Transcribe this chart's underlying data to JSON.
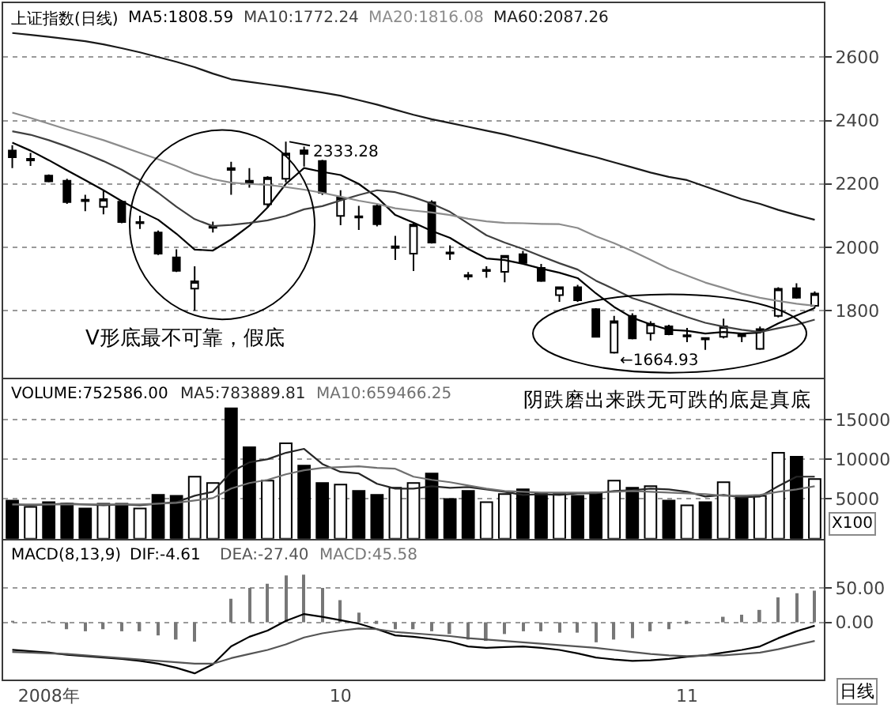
{
  "chart_data": [
    {
      "type": "candlestick",
      "title": "上证指数(日线)",
      "color": "#000000",
      "categories": [
        null,
        null,
        null,
        null,
        null,
        null,
        null,
        null,
        null,
        null,
        null,
        null,
        null,
        null,
        null,
        null,
        null,
        null,
        null,
        null,
        null,
        null,
        null,
        null,
        null,
        null,
        null,
        null,
        null,
        null,
        null,
        null,
        null,
        null,
        null,
        null,
        null,
        null,
        null,
        null,
        null,
        null,
        null,
        null,
        null
      ],
      "ohlc": [
        [
          2305,
          2322,
          2250,
          2284
        ],
        [
          2274,
          2298,
          2257,
          2279
        ],
        [
          2226,
          2230,
          2205,
          2208
        ],
        [
          2210,
          2216,
          2137,
          2143
        ],
        [
          2150,
          2166,
          2114,
          2146
        ],
        [
          2128,
          2181,
          2104,
          2152
        ],
        [
          2144,
          2148,
          2076,
          2080
        ],
        [
          2076,
          2100,
          2058,
          2080
        ],
        [
          2047,
          2053,
          1976,
          1980
        ],
        [
          1968,
          1994,
          1922,
          1926
        ],
        [
          1870,
          1940,
          1800,
          1893
        ],
        [
          2062,
          2081,
          2047,
          2066
        ],
        [
          2250,
          2270,
          2166,
          2244
        ],
        [
          2210,
          2250,
          2188,
          2204
        ],
        [
          2136,
          2224,
          2125,
          2220
        ],
        [
          2216,
          2333.28,
          2205,
          2296
        ],
        [
          2306,
          2318,
          2255,
          2295
        ],
        [
          2272,
          2276,
          2165,
          2172
        ],
        [
          2099,
          2180,
          2070,
          2157
        ],
        [
          2098,
          2131,
          2055,
          2094
        ],
        [
          2130,
          2135,
          2066,
          2073
        ],
        [
          1998,
          2036,
          1960,
          2003
        ],
        [
          1980,
          2080,
          1925,
          2072
        ],
        [
          2142,
          2148,
          2012,
          2015
        ],
        [
          1984,
          2006,
          1960,
          1980
        ],
        [
          1912,
          1922,
          1897,
          1908
        ],
        [
          1925,
          1940,
          1904,
          1929
        ],
        [
          1923,
          1976,
          1890,
          1973
        ],
        [
          1978,
          1989,
          1948,
          1951
        ],
        [
          1935,
          1948,
          1891,
          1894
        ],
        [
          1849,
          1876,
          1828,
          1874
        ],
        [
          1874,
          1882,
          1828,
          1833
        ],
        [
          1805,
          1808,
          1716,
          1718
        ],
        [
          1668,
          1784,
          1664.93,
          1767
        ],
        [
          1784,
          1792,
          1710,
          1713
        ],
        [
          1729,
          1767,
          1706,
          1759
        ],
        [
          1751,
          1756,
          1723,
          1726
        ],
        [
          1719,
          1746,
          1701,
          1723
        ],
        [
          1714,
          1716,
          1677,
          1710
        ],
        [
          1718,
          1775,
          1713,
          1751
        ],
        [
          1724,
          1729,
          1701,
          1720
        ],
        [
          1680,
          1750,
          1677,
          1742
        ],
        [
          1784,
          1874,
          1779,
          1869
        ],
        [
          1871,
          1887,
          1838,
          1841
        ],
        [
          1816,
          1861,
          1808,
          1854
        ]
      ],
      "colors": [
        "#000000",
        "#000000",
        "#000000",
        "#000000",
        "#000000",
        "#ffffff",
        "#000000",
        "#000000",
        "#000000",
        "#000000",
        "#ffffff",
        "#000000",
        "#000000",
        "#000000",
        "#ffffff",
        "#ffffff",
        "#000000",
        "#000000",
        "#ffffff",
        "#000000",
        "#000000",
        "#000000",
        "#ffffff",
        "#000000",
        "#000000",
        "#000000",
        "#000000",
        "#ffffff",
        "#000000",
        "#000000",
        "#ffffff",
        "#000000",
        "#000000",
        "#ffffff",
        "#000000",
        "#ffffff",
        "#000000",
        "#000000",
        "#000000",
        "#ffffff",
        "#000000",
        "#ffffff",
        "#ffffff",
        "#000000",
        "#ffffff"
      ],
      "series": [
        {
          "name": "MA5:1808.59",
          "type": "line",
          "color": "#000000",
          "values": [
            2330,
            2305,
            2275,
            2243,
            2212,
            2180,
            2146,
            2115,
            2087,
            2043,
            1993,
            1990,
            2025,
            2068,
            2126,
            2200,
            2250,
            2238,
            2228,
            2200,
            2158,
            2102,
            2078,
            2052,
            2030,
            1995,
            1965,
            1960,
            1948,
            1933,
            1920,
            1903,
            1855,
            1812,
            1778,
            1757,
            1740,
            1737,
            1728,
            1733,
            1728,
            1731,
            1760,
            1785,
            1809
          ]
        },
        {
          "name": "MA10:1772.24",
          "type": "line",
          "color": "#404040",
          "values": [
            2366,
            2355,
            2338,
            2318,
            2296,
            2272,
            2245,
            2212,
            2172,
            2128,
            2089,
            2067,
            2071,
            2077,
            2085,
            2099,
            2120,
            2130,
            2148,
            2165,
            2180,
            2174,
            2158,
            2138,
            2112,
            2075,
            2038,
            2015,
            1995,
            1972,
            1950,
            1930,
            1895,
            1868,
            1840,
            1822,
            1800,
            1780,
            1762,
            1750,
            1740,
            1733,
            1745,
            1756,
            1772
          ]
        },
        {
          "name": "MA20:1816.08",
          "type": "line",
          "color": "#8c8c8c",
          "values": [
            2425,
            2408,
            2390,
            2372,
            2355,
            2338,
            2318,
            2298,
            2278,
            2256,
            2232,
            2215,
            2204,
            2200,
            2197,
            2190,
            2182,
            2172,
            2160,
            2147,
            2137,
            2123,
            2116,
            2110,
            2102,
            2090,
            2082,
            2077,
            2076,
            2074,
            2073,
            2061,
            2035,
            2013,
            1988,
            1961,
            1933,
            1911,
            1889,
            1872,
            1854,
            1841,
            1831,
            1822,
            1816
          ]
        },
        {
          "name": "MA60:2087.26",
          "type": "line",
          "color": "#1a1a1a",
          "values": [
            2676,
            2670,
            2664,
            2657,
            2650,
            2640,
            2628,
            2615,
            2600,
            2585,
            2568,
            2548,
            2530,
            2522,
            2514,
            2506,
            2497,
            2488,
            2478,
            2464,
            2450,
            2434,
            2418,
            2404,
            2392,
            2380,
            2368,
            2356,
            2342,
            2328,
            2313,
            2298,
            2284,
            2268,
            2252,
            2236,
            2222,
            2212,
            2192,
            2172,
            2152,
            2137,
            2118,
            2102,
            2087
          ]
        }
      ],
      "ylim": [
        1590,
        2770
      ],
      "yticks": [
        1800,
        2000,
        2200,
        2400,
        2600
      ],
      "grid": "y",
      "annotations": [
        "V形底最不可靠，假底",
        "2333.28",
        "←1664.93"
      ]
    },
    {
      "type": "bar",
      "categories": [
        null,
        null,
        null,
        null,
        null,
        null,
        null,
        null,
        null,
        null,
        null,
        null,
        null,
        null,
        null,
        null,
        null,
        null,
        null,
        null,
        null,
        null,
        null,
        null,
        null,
        null,
        null,
        null,
        null,
        null,
        null,
        null,
        null,
        null,
        null,
        null,
        null,
        null,
        null,
        null,
        null,
        null,
        null,
        null,
        null
      ],
      "series": [
        {
          "name": "VOLUME:752586.00",
          "color": "#000000",
          "colors": [
            "#000000",
            "#ffffff",
            "#000000",
            "#000000",
            "#000000",
            "#ffffff",
            "#000000",
            "#ffffff",
            "#000000",
            "#000000",
            "#ffffff",
            "#ffffff",
            "#000000",
            "#000000",
            "#ffffff",
            "#ffffff",
            "#000000",
            "#000000",
            "#ffffff",
            "#000000",
            "#000000",
            "#ffffff",
            "#ffffff",
            "#000000",
            "#000000",
            "#000000",
            "#ffffff",
            "#ffffff",
            "#000000",
            "#000000",
            "#ffffff",
            "#000000",
            "#000000",
            "#ffffff",
            "#000000",
            "#ffffff",
            "#000000",
            "#ffffff",
            "#000000",
            "#ffffff",
            "#000000",
            "#ffffff",
            "#ffffff",
            "#000000",
            "#ffffff"
          ],
          "values": [
            4800,
            4000,
            4600,
            4400,
            3800,
            4400,
            4400,
            3800,
            5500,
            5400,
            7800,
            7000,
            16400,
            11500,
            7300,
            12000,
            9200,
            7000,
            6800,
            6000,
            5500,
            6400,
            7000,
            8200,
            5000,
            6000,
            4600,
            5600,
            6200,
            5700,
            5600,
            5400,
            5800,
            7300,
            6400,
            6600,
            4800,
            4200,
            4600,
            7100,
            5400,
            5400,
            10800,
            10300,
            7500
          ]
        },
        {
          "name": "MA5:783889.81",
          "type": "line",
          "color": "#262626",
          "values": [
            4300,
            4200,
            4300,
            4400,
            4300,
            4200,
            4300,
            4200,
            4400,
            4600,
            5400,
            5900,
            8400,
            9600,
            10000,
            10800,
            11300,
            9400,
            8400,
            8200,
            6900,
            6300,
            6300,
            6600,
            6400,
            6500,
            6200,
            5900,
            5500,
            5600,
            5500,
            5700,
            5700,
            6000,
            6100,
            6300,
            6200,
            5900,
            5300,
            5500,
            5200,
            5300,
            6600,
            7800,
            7800
          ]
        },
        {
          "name": "MA10:659466.25",
          "type": "line",
          "color": "#707070",
          "values": [
            4300,
            4300,
            4300,
            4300,
            4300,
            4300,
            4300,
            4300,
            4400,
            4500,
            4800,
            5100,
            6300,
            7000,
            7400,
            8100,
            8600,
            8900,
            9000,
            9100,
            8900,
            8800,
            7800,
            7400,
            7100,
            6700,
            6300,
            6000,
            5900,
            5800,
            5800,
            5800,
            5800,
            5900,
            6000,
            5900,
            5800,
            5700,
            5600,
            5400,
            5400,
            5500,
            5900,
            6200,
            6600
          ]
        }
      ],
      "ylim": [
        0,
        20100
      ],
      "yticks": [
        5000,
        10000,
        15000
      ],
      "grid": "y",
      "annotations": [
        "阴跌磨出来跌无可跌的底是真底",
        "X100"
      ]
    },
    {
      "type": "line",
      "title": "MACD(8,13,9)",
      "categories": [
        null,
        null,
        "2008年",
        null,
        null,
        null,
        null,
        null,
        null,
        null,
        null,
        null,
        null,
        null,
        null,
        null,
        null,
        null,
        "10",
        null,
        null,
        null,
        null,
        null,
        null,
        null,
        null,
        null,
        null,
        null,
        null,
        null,
        null,
        null,
        null,
        null,
        null,
        "11",
        null,
        null,
        null,
        null,
        null,
        null,
        null
      ],
      "series": [
        {
          "name": "DIF:-4.61",
          "color": "#000000",
          "values": [
            -40,
            -42,
            -44,
            -47,
            -49,
            -51,
            -53,
            -56,
            -60,
            -66,
            -74,
            -61,
            -35,
            -21,
            -12,
            2,
            12,
            8,
            3,
            -2,
            -10,
            -19,
            -21,
            -24,
            -28,
            -35,
            -37,
            -36,
            -35,
            -37,
            -40,
            -45,
            -51,
            -54,
            -56,
            -55,
            -53,
            -50,
            -48,
            -44,
            -40,
            -35,
            -23,
            -13,
            -5
          ]
        },
        {
          "name": "DEA:-27.40",
          "color": "#555555",
          "values": [
            -43,
            -44,
            -45,
            -46,
            -48,
            -50,
            -52,
            -54,
            -56,
            -58,
            -60,
            -60,
            -52,
            -46,
            -40,
            -32,
            -22,
            -16,
            -12,
            -9,
            -10,
            -14,
            -16,
            -18,
            -20,
            -23,
            -25,
            -27,
            -29,
            -31,
            -33,
            -35,
            -37,
            -40,
            -43,
            -46,
            -48,
            -49,
            -48,
            -48,
            -46,
            -44,
            -39,
            -33,
            -27
          ]
        },
        {
          "name": "MACD:45.58",
          "type": "bar",
          "color": "#777777",
          "values": [
            1,
            0,
            1,
            -10,
            -13,
            -10,
            -13,
            -13,
            -19,
            -25,
            -28,
            0,
            34,
            50,
            56,
            68,
            69,
            50,
            32,
            14,
            -1,
            -10,
            -10,
            -13,
            -17,
            -25,
            -27,
            -17,
            -13,
            -13,
            -15,
            -15,
            -29,
            -25,
            -23,
            -13,
            -10,
            -2,
            0,
            8,
            11,
            18,
            36,
            42,
            46
          ]
        }
      ],
      "ylim": [
        -83,
        119
      ],
      "yticks": [
        {
          "value": 0,
          "label": "0.00"
        },
        {
          "value": 50,
          "label": "50.00"
        }
      ],
      "grid": "y",
      "annotations": [
        "日线"
      ]
    }
  ]
}
